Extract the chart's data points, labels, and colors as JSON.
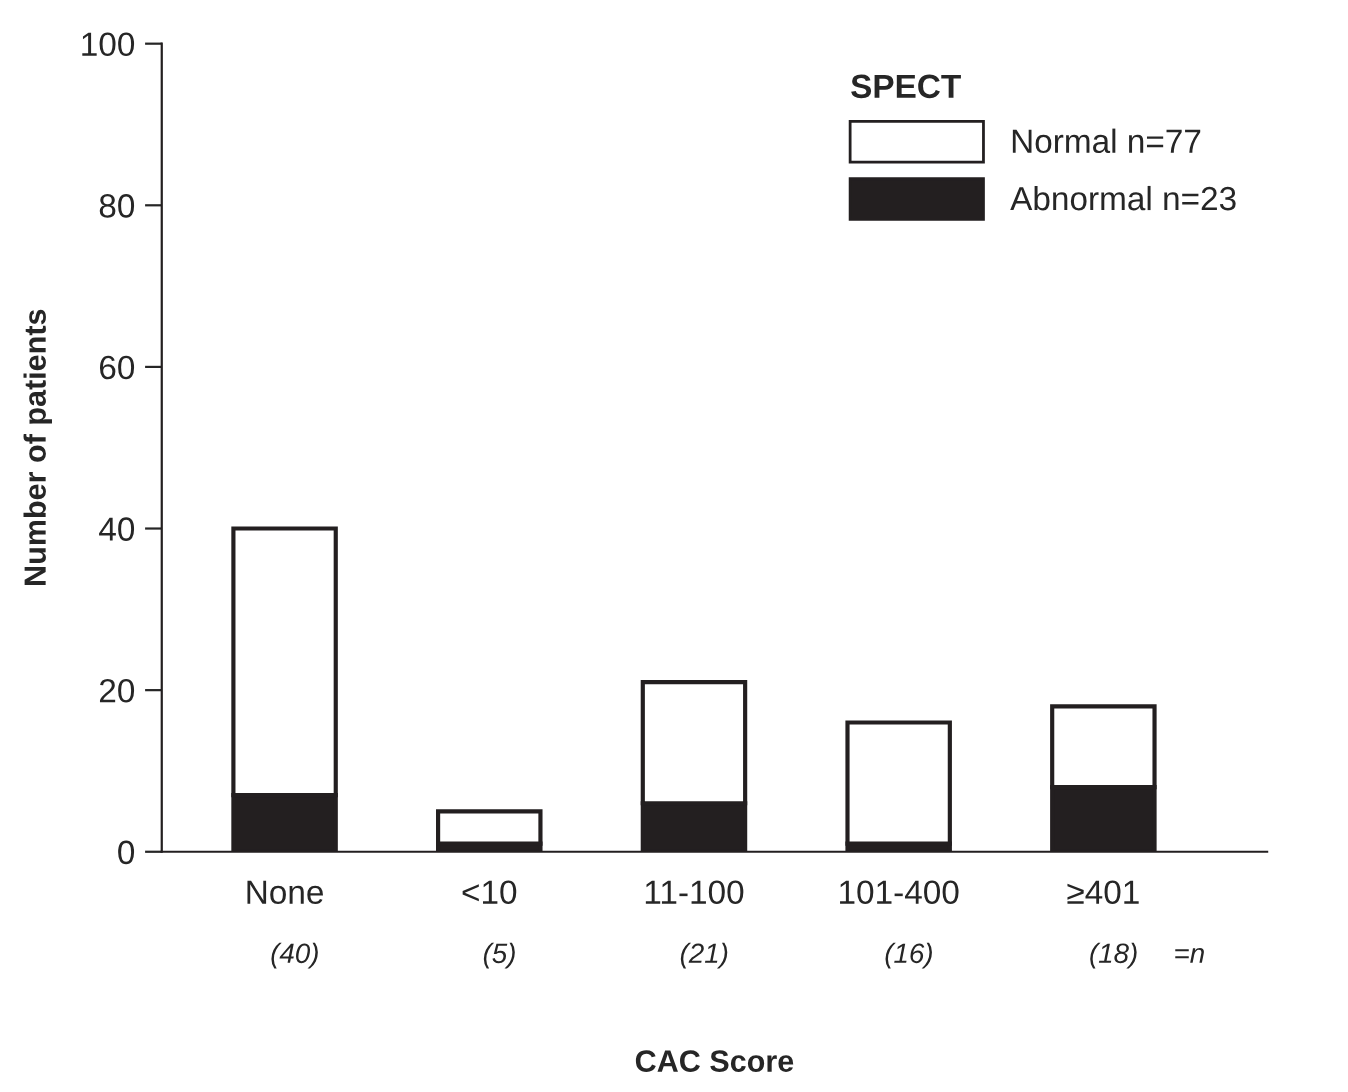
{
  "chart_data": {
    "type": "bar",
    "stacked": true,
    "xlabel": "CAC Score",
    "ylabel": "Number of patients",
    "legend_title": "SPECT",
    "categories": [
      "None",
      "<10",
      "11-100",
      "101-400",
      "≥401"
    ],
    "series": [
      {
        "name": "Abnormal n=23",
        "color": "#231f20",
        "values": [
          7,
          1,
          6,
          1,
          8
        ]
      },
      {
        "name": "Normal n=77",
        "color": "#ffffff",
        "values": [
          33,
          4,
          15,
          15,
          10
        ]
      }
    ],
    "ylim": [
      0,
      100
    ],
    "yticks": [
      0,
      20,
      40,
      60,
      80,
      100
    ],
    "grid": false,
    "legend": "top right",
    "annotations": [
      "(40)",
      "(5)",
      "(21)",
      "(16)",
      "(18)",
      "=n"
    ]
  }
}
